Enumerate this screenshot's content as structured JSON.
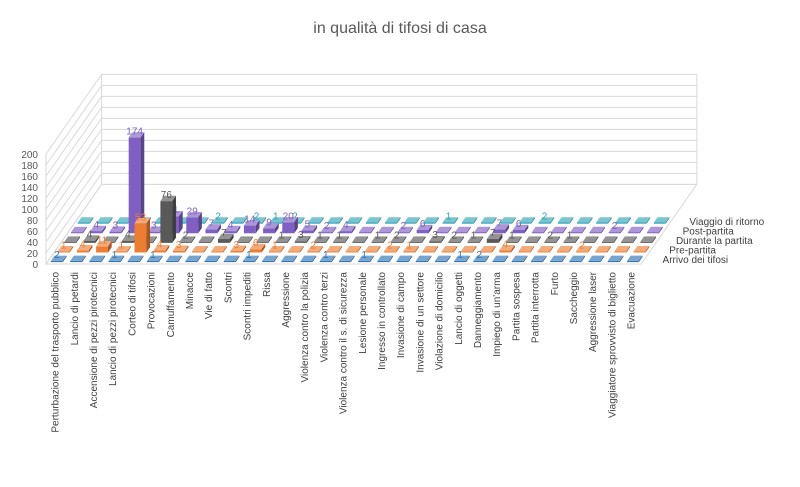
{
  "chart_data": {
    "type": "bar",
    "title": "in qualità di tifosi di casa",
    "xlabel": "",
    "ylabel": "",
    "ylim": [
      0,
      200
    ],
    "ytick_labels": [
      "0",
      "20",
      "40",
      "60",
      "80",
      "100",
      "120",
      "140",
      "160",
      "180",
      "200"
    ],
    "grid": true,
    "legend_position": "right",
    "categories": [
      "Perturbazione del trasporto pubblico",
      "Lancio di petardi",
      "Accensione di pezzi pirotecnici",
      "Lancio di pezzi pirotecnici",
      "Corteo di tifosi",
      "Provocazioni",
      "Camuffamento",
      "Minacce",
      "Vie di fatto",
      "Scontri",
      "Scontri impediti",
      "Rissa",
      "Aggressione",
      "Violenza contro la polizia",
      "Violenza contro terzi",
      "Violenza contro il s. di sicurezza",
      "Lesione personale",
      "Ingresso in controllato",
      "Invasione di campo",
      "Invasione di un settore",
      "Violazione di domicilio",
      "Lancio di oggetti",
      "Danneggiamento",
      "Impiego di un'arma",
      "Partita sospesa",
      "Partita interrotta",
      "Furto",
      "Saccheggio",
      "Aggressione laser",
      "Viaggiatore sprovvisto di biglietto",
      "Evacuazione"
    ],
    "series": [
      {
        "name": "Arrivo dei tifosi",
        "color": "#2E75B6",
        "values": [
          2,
          0,
          0,
          1,
          0,
          1,
          0,
          0,
          0,
          0,
          1,
          0,
          0,
          0,
          1,
          0,
          1,
          0,
          0,
          0,
          0,
          1,
          2,
          0,
          0,
          0,
          0,
          0,
          0,
          0,
          0
        ]
      },
      {
        "name": "Pre-partita",
        "color": "#ED7D31",
        "values": [
          1,
          4,
          11,
          1,
          53,
          4,
          3,
          0,
          0,
          3,
          6,
          1,
          0,
          2,
          0,
          0,
          0,
          2,
          1,
          0,
          0,
          0,
          0,
          4,
          0,
          0,
          0,
          2,
          0,
          0,
          0
        ]
      },
      {
        "name": "Durante la partita",
        "color": "#595959",
        "values": [
          0,
          4,
          0,
          4,
          0,
          76,
          2,
          0,
          7,
          0,
          0,
          1,
          3,
          1,
          1,
          0,
          1,
          2,
          0,
          3,
          2,
          1,
          7,
          1,
          0,
          2,
          1,
          0,
          0,
          0,
          0
        ]
      },
      {
        "name": "Post-partita",
        "color": "#7F5FC3",
        "values": [
          0,
          4,
          3,
          174,
          3,
          31,
          29,
          7,
          4,
          14,
          9,
          20,
          5,
          2,
          4,
          0,
          0,
          2,
          6,
          0,
          0,
          0,
          7,
          6,
          0,
          0,
          0,
          0,
          2,
          0,
          0
        ]
      },
      {
        "name": "Viaggio di ritorno",
        "color": "#2FA5B8",
        "values": [
          0,
          0,
          0,
          1,
          0,
          0,
          2,
          2,
          0,
          2,
          1,
          2,
          0,
          0,
          0,
          0,
          0,
          0,
          0,
          1,
          0,
          0,
          0,
          0,
          2,
          0,
          0,
          0,
          0,
          0,
          0
        ]
      }
    ]
  }
}
